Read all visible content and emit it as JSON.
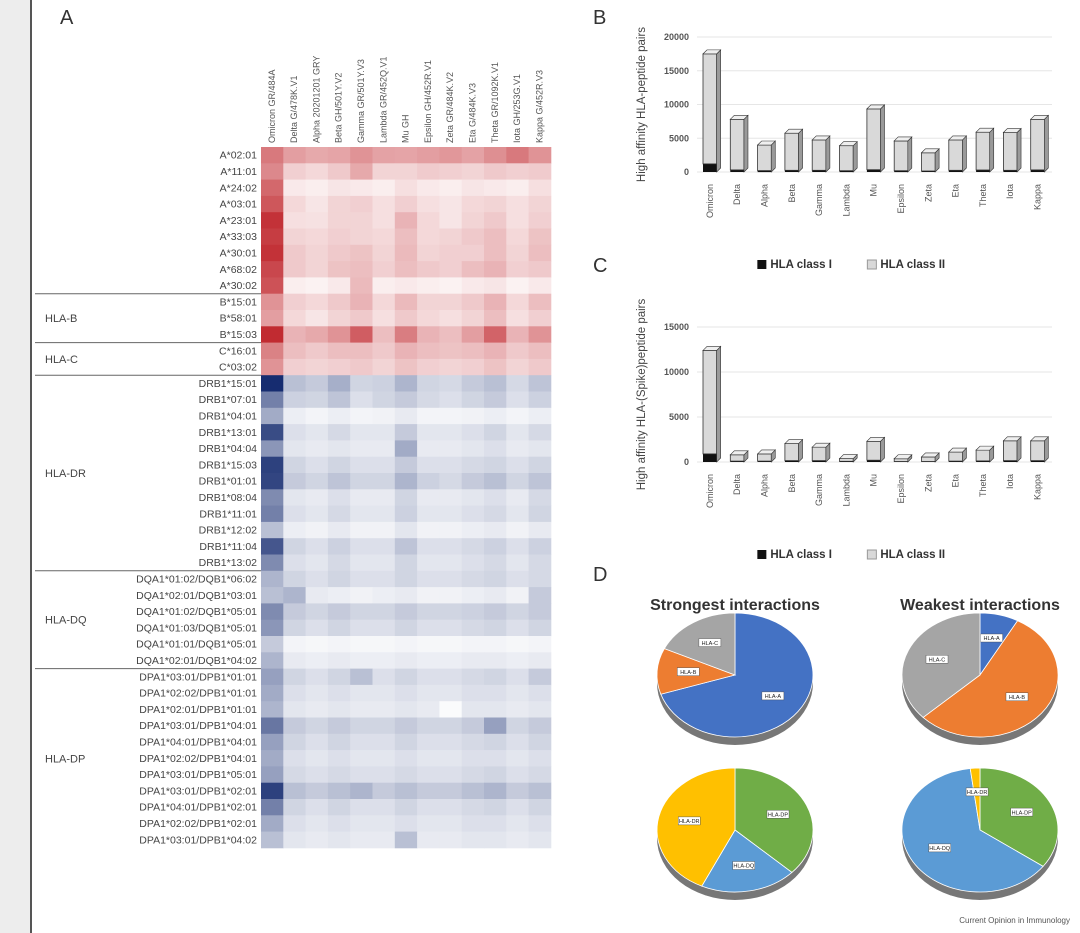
{
  "panel_letters": [
    "A",
    "B",
    "C",
    "D"
  ],
  "credit": "Current Opinion in Immunology",
  "chart_data": [
    {
      "type": "heatmap",
      "panel": "A",
      "columns": [
        "Omicron GR/484A",
        "Delta G/478K.V1",
        "Alpha 20201201 GRY",
        "Beta GH/501Y.V2",
        "Gamma GR/501Y.V3",
        "Lambda GR/452Q.V1",
        "Mu GH",
        "Epsilon GH/452R.V1",
        "Zeta GR/484K.V2",
        "Eta G/484K.V3",
        "Theta GR/1092K.V1",
        "Iota GH/253G.V1",
        "Kappa G/452R.V3"
      ],
      "rows": [
        "A*02:01",
        "A*11:01",
        "A*24:02",
        "A*03:01",
        "A*23:01",
        "A*33:03",
        "A*30:01",
        "A*68:02",
        "A*30:02",
        "B*15:01",
        "B*58:01",
        "B*15:03",
        "C*16:01",
        "C*03:02",
        "DRB1*15:01",
        "DRB1*07:01",
        "DRB1*04:01",
        "DRB1*13:01",
        "DRB1*04:04",
        "DRB1*15:03",
        "DRB1*01:01",
        "DRB1*08:04",
        "DRB1*11:01",
        "DRB1*12:02",
        "DRB1*11:04",
        "DRB1*13:02",
        "DQA1*01:02/DQB1*06:02",
        "DQA1*02:01/DQB1*03:01",
        "DQA1*01:02/DQB1*05:01",
        "DQA1*01:03/DQB1*05:01",
        "DQA1*01:01/DQB1*05:01",
        "DQA1*02:01/DQB1*04:02",
        "DPA1*03:01/DPB1*01:01",
        "DPA1*02:02/DPB1*01:01",
        "DPA1*02:01/DPB1*01:01",
        "DPA1*03:01/DPB1*04:01",
        "DPA1*04:01/DPB1*04:01",
        "DPA1*02:02/DPB1*04:01",
        "DPA1*03:01/DPB1*05:01",
        "DPA1*03:01/DPB1*02:01",
        "DPA1*04:01/DPB1*02:01",
        "DPA1*02:02/DPB1*02:01",
        "DPA1*03:01/DPB1*04:02"
      ],
      "row_label_colors": {
        "1": "#c0392b",
        "8": "#c0392b",
        "9": "#3c8d3c",
        "14": "#c0392b",
        "16": "#3c8d3c"
      },
      "row_classes": [
        "I",
        "I",
        "I",
        "I",
        "I",
        "I",
        "I",
        "I",
        "I",
        "I",
        "I",
        "I",
        "I",
        "I",
        "II",
        "II",
        "II",
        "II",
        "II",
        "II",
        "II",
        "II",
        "II",
        "II",
        "II",
        "II",
        "II",
        "II",
        "II",
        "II",
        "II",
        "II",
        "II",
        "II",
        "II",
        "II",
        "II",
        "II",
        "II",
        "II",
        "II",
        "II",
        "II"
      ],
      "groups": [
        {
          "label": "HLA-B",
          "start": 9,
          "end": 11
        },
        {
          "label": "HLA-C",
          "start": 12,
          "end": 13
        },
        {
          "label": "HLA-DR",
          "start": 14,
          "end": 25
        },
        {
          "label": "HLA-DQ",
          "start": 26,
          "end": 31
        },
        {
          "label": "HLA-DP",
          "start": 32,
          "end": 42
        }
      ],
      "values": [
        [
          0.62,
          0.45,
          0.4,
          0.42,
          0.5,
          0.43,
          0.42,
          0.45,
          0.48,
          0.43,
          0.52,
          0.62,
          0.5
        ],
        [
          0.55,
          0.22,
          0.18,
          0.25,
          0.4,
          0.2,
          0.2,
          0.24,
          0.22,
          0.2,
          0.25,
          0.22,
          0.24
        ],
        [
          0.7,
          0.1,
          0.08,
          0.12,
          0.1,
          0.08,
          0.15,
          0.1,
          0.08,
          0.12,
          0.1,
          0.08,
          0.15
        ],
        [
          0.78,
          0.18,
          0.12,
          0.2,
          0.22,
          0.15,
          0.22,
          0.15,
          0.12,
          0.18,
          0.2,
          0.15,
          0.2
        ],
        [
          0.95,
          0.15,
          0.14,
          0.2,
          0.2,
          0.15,
          0.35,
          0.18,
          0.12,
          0.2,
          0.25,
          0.15,
          0.22
        ],
        [
          0.9,
          0.2,
          0.18,
          0.22,
          0.2,
          0.18,
          0.3,
          0.18,
          0.2,
          0.25,
          0.3,
          0.18,
          0.28
        ],
        [
          0.95,
          0.25,
          0.2,
          0.25,
          0.28,
          0.2,
          0.32,
          0.2,
          0.22,
          0.22,
          0.3,
          0.2,
          0.3
        ],
        [
          0.85,
          0.25,
          0.2,
          0.28,
          0.3,
          0.22,
          0.3,
          0.25,
          0.22,
          0.3,
          0.35,
          0.22,
          0.25
        ],
        [
          0.8,
          0.08,
          0.06,
          0.1,
          0.32,
          0.08,
          0.1,
          0.08,
          0.06,
          0.1,
          0.12,
          0.06,
          0.1
        ],
        [
          0.5,
          0.22,
          0.18,
          0.25,
          0.35,
          0.18,
          0.32,
          0.2,
          0.2,
          0.25,
          0.35,
          0.18,
          0.3
        ],
        [
          0.45,
          0.18,
          0.12,
          0.2,
          0.25,
          0.15,
          0.25,
          0.18,
          0.15,
          0.2,
          0.3,
          0.15,
          0.22
        ],
        [
          0.98,
          0.35,
          0.4,
          0.5,
          0.75,
          0.3,
          0.6,
          0.35,
          0.3,
          0.45,
          0.72,
          0.35,
          0.5
        ],
        [
          0.58,
          0.3,
          0.25,
          0.3,
          0.3,
          0.25,
          0.35,
          0.3,
          0.28,
          0.3,
          0.35,
          0.25,
          0.3
        ],
        [
          0.5,
          0.22,
          0.2,
          0.22,
          0.25,
          0.2,
          0.28,
          0.22,
          0.2,
          0.22,
          0.28,
          0.2,
          0.25
        ],
        [
          1.0,
          0.3,
          0.25,
          0.38,
          0.2,
          0.22,
          0.35,
          0.2,
          0.18,
          0.25,
          0.3,
          0.18,
          0.28
        ],
        [
          0.6,
          0.22,
          0.2,
          0.28,
          0.15,
          0.2,
          0.25,
          0.18,
          0.15,
          0.2,
          0.25,
          0.15,
          0.22
        ],
        [
          0.4,
          0.08,
          0.05,
          0.08,
          0.05,
          0.06,
          0.1,
          0.05,
          0.05,
          0.06,
          0.08,
          0.05,
          0.08
        ],
        [
          0.85,
          0.15,
          0.12,
          0.18,
          0.12,
          0.12,
          0.25,
          0.12,
          0.12,
          0.15,
          0.2,
          0.12,
          0.18
        ],
        [
          0.5,
          0.12,
          0.1,
          0.12,
          0.1,
          0.1,
          0.4,
          0.1,
          0.1,
          0.12,
          0.15,
          0.1,
          0.12
        ],
        [
          0.9,
          0.2,
          0.15,
          0.2,
          0.15,
          0.15,
          0.25,
          0.15,
          0.15,
          0.18,
          0.2,
          0.15,
          0.2
        ],
        [
          0.88,
          0.25,
          0.2,
          0.28,
          0.2,
          0.2,
          0.35,
          0.22,
          0.18,
          0.25,
          0.3,
          0.2,
          0.28
        ],
        [
          0.55,
          0.12,
          0.1,
          0.15,
          0.1,
          0.1,
          0.2,
          0.1,
          0.1,
          0.12,
          0.15,
          0.1,
          0.18
        ],
        [
          0.6,
          0.15,
          0.12,
          0.18,
          0.12,
          0.12,
          0.22,
          0.12,
          0.12,
          0.15,
          0.18,
          0.12,
          0.2
        ],
        [
          0.3,
          0.08,
          0.06,
          0.1,
          0.06,
          0.06,
          0.12,
          0.06,
          0.06,
          0.08,
          0.1,
          0.06,
          0.1
        ],
        [
          0.8,
          0.2,
          0.15,
          0.22,
          0.15,
          0.15,
          0.28,
          0.15,
          0.15,
          0.18,
          0.22,
          0.15,
          0.22
        ],
        [
          0.55,
          0.15,
          0.12,
          0.18,
          0.12,
          0.12,
          0.2,
          0.12,
          0.12,
          0.15,
          0.18,
          0.12,
          0.18
        ],
        [
          0.35,
          0.2,
          0.15,
          0.2,
          0.15,
          0.15,
          0.2,
          0.15,
          0.15,
          0.18,
          0.2,
          0.15,
          0.18
        ],
        [
          0.3,
          0.35,
          0.1,
          0.08,
          0.06,
          0.08,
          0.1,
          0.06,
          0.06,
          0.08,
          0.1,
          0.06,
          0.25
        ],
        [
          0.55,
          0.25,
          0.2,
          0.25,
          0.2,
          0.2,
          0.25,
          0.2,
          0.2,
          0.22,
          0.25,
          0.2,
          0.25
        ],
        [
          0.5,
          0.2,
          0.15,
          0.2,
          0.15,
          0.15,
          0.2,
          0.15,
          0.15,
          0.18,
          0.2,
          0.15,
          0.2
        ],
        [
          0.25,
          0.05,
          0.04,
          0.05,
          0.04,
          0.04,
          0.05,
          0.04,
          0.04,
          0.05,
          0.05,
          0.04,
          0.05
        ],
        [
          0.35,
          0.1,
          0.08,
          0.1,
          0.08,
          0.08,
          0.1,
          0.08,
          0.08,
          0.1,
          0.1,
          0.08,
          0.1
        ],
        [
          0.45,
          0.2,
          0.15,
          0.2,
          0.3,
          0.15,
          0.2,
          0.15,
          0.15,
          0.18,
          0.2,
          0.15,
          0.25
        ],
        [
          0.4,
          0.15,
          0.12,
          0.15,
          0.12,
          0.12,
          0.15,
          0.12,
          0.12,
          0.15,
          0.15,
          0.12,
          0.15
        ],
        [
          0.35,
          0.12,
          0.1,
          0.12,
          0.1,
          0.1,
          0.12,
          0.1,
          0.02,
          0.12,
          0.12,
          0.1,
          0.12
        ],
        [
          0.65,
          0.25,
          0.2,
          0.25,
          0.2,
          0.2,
          0.25,
          0.2,
          0.2,
          0.25,
          0.45,
          0.2,
          0.25
        ],
        [
          0.45,
          0.2,
          0.15,
          0.2,
          0.15,
          0.15,
          0.2,
          0.15,
          0.15,
          0.18,
          0.2,
          0.15,
          0.2
        ],
        [
          0.4,
          0.15,
          0.12,
          0.15,
          0.12,
          0.12,
          0.15,
          0.12,
          0.12,
          0.15,
          0.15,
          0.12,
          0.15
        ],
        [
          0.45,
          0.18,
          0.15,
          0.18,
          0.15,
          0.15,
          0.18,
          0.15,
          0.15,
          0.18,
          0.2,
          0.15,
          0.18
        ],
        [
          0.9,
          0.3,
          0.25,
          0.3,
          0.35,
          0.25,
          0.3,
          0.25,
          0.25,
          0.3,
          0.35,
          0.25,
          0.3
        ],
        [
          0.6,
          0.2,
          0.15,
          0.2,
          0.15,
          0.15,
          0.2,
          0.15,
          0.15,
          0.18,
          0.2,
          0.15,
          0.2
        ],
        [
          0.4,
          0.15,
          0.12,
          0.15,
          0.12,
          0.12,
          0.15,
          0.12,
          0.12,
          0.15,
          0.15,
          0.12,
          0.15
        ],
        [
          0.3,
          0.12,
          0.1,
          0.12,
          0.1,
          0.1,
          0.3,
          0.1,
          0.1,
          0.12,
          0.12,
          0.1,
          0.12
        ]
      ]
    },
    {
      "type": "bar",
      "panel": "B",
      "ylabel": "High affinity HLA-peptide pairs",
      "categories": [
        "Omicron",
        "Delta",
        "Alpha",
        "Beta",
        "Gamma",
        "Lambda",
        "Mu",
        "Epsilon",
        "Zeta",
        "Eta",
        "Theta",
        "Iota",
        "Kappa"
      ],
      "series": [
        {
          "name": "HLA class I",
          "values": [
            1200,
            300,
            200,
            250,
            250,
            200,
            350,
            200,
            150,
            250,
            300,
            250,
            300
          ]
        },
        {
          "name": "HLA class II",
          "values": [
            16300,
            7500,
            3800,
            5500,
            4500,
            3700,
            9000,
            4400,
            2700,
            4500,
            5600,
            5600,
            7500
          ]
        }
      ],
      "yticks": [
        0,
        5000,
        10000,
        15000,
        20000
      ],
      "ylim": [
        0,
        20000
      ],
      "legend": [
        "HLA class I",
        "HLA class II"
      ]
    },
    {
      "type": "bar",
      "panel": "C",
      "ylabel": "High affinity HLA-(Spike)peptide pairs",
      "categories": [
        "Omicron",
        "Delta",
        "Alpha",
        "Beta",
        "Gamma",
        "Lambda",
        "Mu",
        "Epsilon",
        "Zeta",
        "Eta",
        "Theta",
        "Iota",
        "Kappa"
      ],
      "series": [
        {
          "name": "HLA class I",
          "values": [
            900,
            100,
            100,
            150,
            150,
            80,
            200,
            60,
            60,
            100,
            120,
            150,
            150
          ]
        },
        {
          "name": "HLA class II",
          "values": [
            11500,
            700,
            800,
            1900,
            1500,
            300,
            2100,
            300,
            500,
            1000,
            1200,
            2200,
            2200
          ]
        }
      ],
      "yticks": [
        0,
        5000,
        10000,
        15000
      ],
      "ylim": [
        0,
        15000
      ],
      "legend": [
        "HLA class I",
        "HLA class II"
      ]
    },
    {
      "type": "pie",
      "panel": "D",
      "title": "Strongest interactions",
      "slices": [
        {
          "label": "HLA-A",
          "value": 70,
          "color": "#4472c4"
        },
        {
          "label": "HLA-B",
          "value": 12,
          "color": "#ed7d31"
        },
        {
          "label": "HLA-C",
          "value": 18,
          "color": "#a5a5a5"
        }
      ]
    },
    {
      "type": "pie",
      "panel": "D",
      "title": "Weakest interactions",
      "slices": [
        {
          "label": "HLA-A",
          "value": 8,
          "color": "#4472c4"
        },
        {
          "label": "HLA-B",
          "value": 55,
          "color": "#ed7d31"
        },
        {
          "label": "HLA-C",
          "value": 37,
          "color": "#a5a5a5"
        }
      ]
    },
    {
      "type": "pie",
      "panel": "D",
      "title": "",
      "slices": [
        {
          "label": "HLA-DP",
          "value": 37,
          "color": "#70ad47"
        },
        {
          "label": "HLA-DQ",
          "value": 20,
          "color": "#5b9bd5"
        },
        {
          "label": "HLA-DR",
          "value": 43,
          "color": "#ffc000"
        }
      ]
    },
    {
      "type": "pie",
      "panel": "D",
      "title": "",
      "slices": [
        {
          "label": "HLA-DP",
          "value": 35,
          "color": "#70ad47"
        },
        {
          "label": "HLA-DQ",
          "value": 63,
          "color": "#5b9bd5"
        },
        {
          "label": "HLA-DR",
          "value": 2,
          "color": "#ffc000"
        }
      ]
    }
  ]
}
